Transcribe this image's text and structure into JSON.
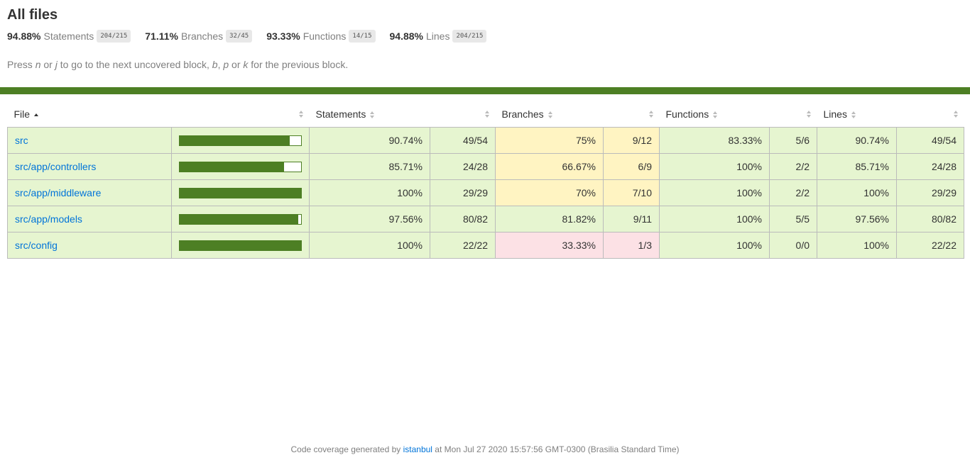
{
  "title": "All files",
  "summary": [
    {
      "pct": "94.88%",
      "label": "Statements",
      "fraction": "204/215"
    },
    {
      "pct": "71.11%",
      "label": "Branches",
      "fraction": "32/45"
    },
    {
      "pct": "93.33%",
      "label": "Functions",
      "fraction": "14/15"
    },
    {
      "pct": "94.88%",
      "label": "Lines",
      "fraction": "204/215"
    }
  ],
  "hint": {
    "p1": "Press ",
    "k1": "n",
    "p2": " or ",
    "k2": "j",
    "p3": " to go to the next uncovered block, ",
    "k3": "b",
    "p4": ", ",
    "k4": "p",
    "p5": " or ",
    "k5": "k",
    "p6": " for the previous block."
  },
  "headers": {
    "file": "File",
    "statements": "Statements",
    "branches": "Branches",
    "functions": "Functions",
    "lines": "Lines"
  },
  "rows": [
    {
      "file": "src",
      "coverage": 0.9074,
      "stmt_pct": "90.74%",
      "stmt_abs": "49/54",
      "br_pct": "75%",
      "br_abs": "9/12",
      "fn_pct": "83.33%",
      "fn_abs": "5/6",
      "ln_pct": "90.74%",
      "ln_abs": "49/54",
      "stmt_cls": "high",
      "br_cls": "medium",
      "fn_cls": "high",
      "ln_cls": "high"
    },
    {
      "file": "src/app/controllers",
      "coverage": 0.8571,
      "stmt_pct": "85.71%",
      "stmt_abs": "24/28",
      "br_pct": "66.67%",
      "br_abs": "6/9",
      "fn_pct": "100%",
      "fn_abs": "2/2",
      "ln_pct": "85.71%",
      "ln_abs": "24/28",
      "stmt_cls": "high",
      "br_cls": "medium",
      "fn_cls": "high",
      "ln_cls": "high"
    },
    {
      "file": "src/app/middleware",
      "coverage": 1.0,
      "stmt_pct": "100%",
      "stmt_abs": "29/29",
      "br_pct": "70%",
      "br_abs": "7/10",
      "fn_pct": "100%",
      "fn_abs": "2/2",
      "ln_pct": "100%",
      "ln_abs": "29/29",
      "stmt_cls": "high",
      "br_cls": "medium",
      "fn_cls": "high",
      "ln_cls": "high"
    },
    {
      "file": "src/app/models",
      "coverage": 0.9756,
      "stmt_pct": "97.56%",
      "stmt_abs": "80/82",
      "br_pct": "81.82%",
      "br_abs": "9/11",
      "fn_pct": "100%",
      "fn_abs": "5/5",
      "ln_pct": "97.56%",
      "ln_abs": "80/82",
      "stmt_cls": "high",
      "br_cls": "high",
      "fn_cls": "high",
      "ln_cls": "high"
    },
    {
      "file": "src/config",
      "coverage": 1.0,
      "stmt_pct": "100%",
      "stmt_abs": "22/22",
      "br_pct": "33.33%",
      "br_abs": "1/3",
      "fn_pct": "100%",
      "fn_abs": "0/0",
      "ln_pct": "100%",
      "ln_abs": "22/22",
      "stmt_cls": "high",
      "br_cls": "low",
      "fn_cls": "high",
      "ln_cls": "high"
    }
  ],
  "footer": {
    "prefix": "Code coverage generated by ",
    "link": "istanbul",
    "suffix": " at Mon Jul 27 2020 15:57:56 GMT-0300 (Brasilia Standard Time)"
  },
  "colors": {
    "high_bg": "#e6f5d0",
    "medium_bg": "#fff4c2",
    "low_bg": "#fce1e5",
    "bar": "#4d7f24",
    "link": "#0074d9"
  }
}
